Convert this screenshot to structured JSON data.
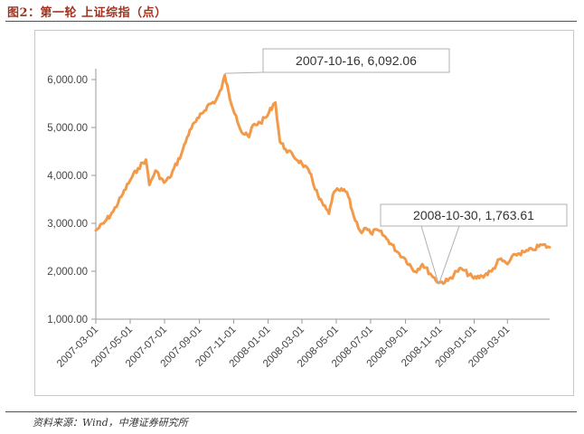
{
  "figure": {
    "label": "图2：第一轮 上证综指（点）",
    "source": "资料来源：Wind，中港证券研究所"
  },
  "colors": {
    "accent": "#a0321e",
    "series": "#f29a4a",
    "axis": "#9a9a9a",
    "callout_border": "#b0b0b0"
  },
  "chart_data": {
    "type": "line",
    "title": "上证综指（点）",
    "xlabel": "",
    "ylabel": "",
    "ylim": [
      1000,
      6000
    ],
    "yticks": [
      1000,
      2000,
      3000,
      4000,
      5000,
      6000
    ],
    "ytick_labels": [
      "1,000.00",
      "2,000.00",
      "3,000.00",
      "4,000.00",
      "5,000.00",
      "6,000.00"
    ],
    "xlim": [
      "2007-03-01",
      "2009-05-15"
    ],
    "xticks": [
      "2007-03-01",
      "2007-05-01",
      "2007-07-01",
      "2007-09-01",
      "2007-11-01",
      "2008-01-01",
      "2008-03-01",
      "2008-05-01",
      "2008-07-01",
      "2008-09-01",
      "2008-11-01",
      "2009-01-01",
      "2009-03-01"
    ],
    "legend": "none",
    "grid": false,
    "series": [
      {
        "name": "上证综指",
        "x": [
          "2007-03-01",
          "2007-03-15",
          "2007-04-01",
          "2007-04-15",
          "2007-05-01",
          "2007-05-15",
          "2007-05-29",
          "2007-06-04",
          "2007-06-15",
          "2007-06-30",
          "2007-07-10",
          "2007-07-31",
          "2007-08-15",
          "2007-08-31",
          "2007-09-15",
          "2007-09-30",
          "2007-10-10",
          "2007-10-16",
          "2007-10-25",
          "2007-11-05",
          "2007-11-15",
          "2007-11-28",
          "2007-12-05",
          "2007-12-18",
          "2007-12-31",
          "2008-01-10",
          "2008-01-14",
          "2008-01-22",
          "2008-02-01",
          "2008-02-15",
          "2008-03-01",
          "2008-03-15",
          "2008-04-01",
          "2008-04-18",
          "2008-04-25",
          "2008-05-05",
          "2008-05-20",
          "2008-06-01",
          "2008-06-15",
          "2008-06-20",
          "2008-07-01",
          "2008-07-15",
          "2008-08-01",
          "2008-08-18",
          "2008-09-01",
          "2008-09-18",
          "2008-10-01",
          "2008-10-15",
          "2008-10-30",
          "2008-11-15",
          "2008-12-01",
          "2008-12-10",
          "2008-12-31",
          "2009-01-15",
          "2009-02-01",
          "2009-02-15",
          "2009-03-01",
          "2009-03-15",
          "2009-04-01",
          "2009-04-15",
          "2009-05-01",
          "2009-05-15"
        ],
        "values": [
          2850,
          3000,
          3250,
          3550,
          3900,
          4150,
          4330,
          3800,
          4100,
          3850,
          3950,
          4450,
          4950,
          5200,
          5450,
          5560,
          5800,
          6092.06,
          5600,
          5250,
          4900,
          4800,
          5050,
          5100,
          5250,
          5480,
          5520,
          4700,
          4550,
          4400,
          4250,
          4050,
          3500,
          3200,
          3600,
          3700,
          3650,
          3150,
          2800,
          2900,
          2800,
          2850,
          2650,
          2400,
          2250,
          1990,
          2150,
          1950,
          1763.61,
          1800,
          2000,
          2050,
          1850,
          1900,
          2000,
          2250,
          2150,
          2350,
          2400,
          2450,
          2550,
          2500
        ]
      }
    ],
    "annotations": [
      {
        "text": "2007-10-16, 6,092.06",
        "x": "2007-10-16",
        "y": 6092.06
      },
      {
        "text": "2008-10-30, 1,763.61",
        "x": "2008-10-30",
        "y": 1763.61
      }
    ]
  }
}
